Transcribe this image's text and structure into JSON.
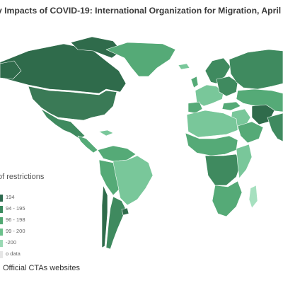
{
  "title": "y Impacts of COVID-19: International Organization for Migration, April",
  "legend": {
    "title": "of restrictions",
    "items": [
      {
        "label": "194",
        "color": "#2d6a4f"
      },
      {
        "label": "94 - 195",
        "color": "#3a8a5e"
      },
      {
        "label": "96 - 198",
        "color": "#52a872"
      },
      {
        "label": "99 - 200",
        "color": "#6cc18c"
      },
      {
        "label": "-200",
        "color": "#9ad9b4"
      },
      {
        "label": "o data",
        "color": "#e6e6e6"
      }
    ]
  },
  "source": "Official CTAs websites",
  "colors": {
    "darkest": "#2f6b4b",
    "dark": "#3f8a5f",
    "mid": "#55aa77",
    "light": "#79c79a",
    "lightest": "#a6e0bf",
    "border": "#ffffff",
    "ocean": "#ffffff"
  }
}
